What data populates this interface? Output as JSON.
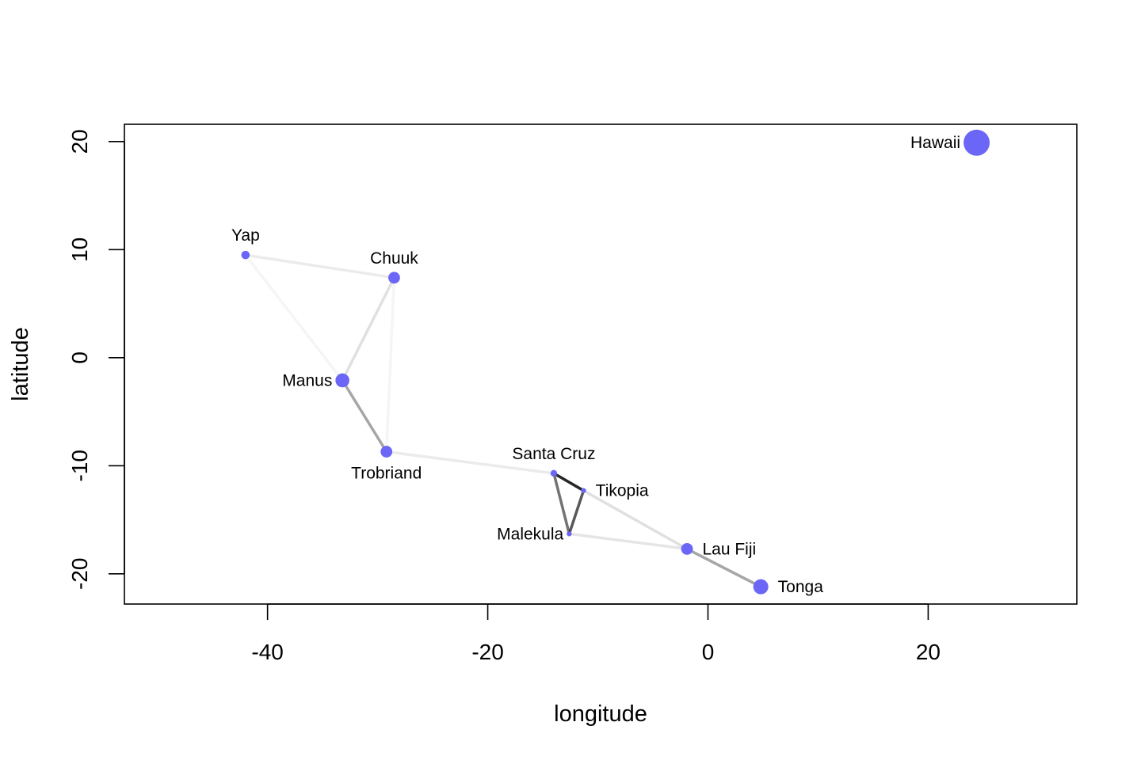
{
  "chart_data": {
    "type": "scatter",
    "title": "",
    "xlabel": "longitude",
    "ylabel": "latitude",
    "xlim": [
      -53,
      33.5
    ],
    "ylim": [
      -22.8,
      21.6
    ],
    "xticks": [
      -40,
      -20,
      0,
      20
    ],
    "yticks": [
      -20,
      -10,
      0,
      10,
      20
    ],
    "grid": false,
    "point_color": "#6b66f5",
    "edge_color": "#000000",
    "points": [
      {
        "name": "Yap",
        "x": -42.0,
        "y": 9.5,
        "size": 0.2,
        "label_pos": "above"
      },
      {
        "name": "Chuuk",
        "x": -28.5,
        "y": 7.4,
        "size": 0.35,
        "label_pos": "above"
      },
      {
        "name": "Manus",
        "x": -33.2,
        "y": -2.1,
        "size": 0.45,
        "label_pos": "left"
      },
      {
        "name": "Trobriand",
        "x": -29.2,
        "y": -8.7,
        "size": 0.35,
        "label_pos": "below"
      },
      {
        "name": "Santa Cruz",
        "x": -14.0,
        "y": -10.7,
        "size": 0.12,
        "label_pos": "above"
      },
      {
        "name": "Tikopia",
        "x": -11.3,
        "y": -12.3,
        "size": 0.05,
        "label_pos": "right"
      },
      {
        "name": "Malekula",
        "x": -12.6,
        "y": -16.3,
        "size": 0.05,
        "label_pos": "left"
      },
      {
        "name": "Lau Fiji",
        "x": -1.9,
        "y": -17.7,
        "size": 0.35,
        "label_pos": "right"
      },
      {
        "name": "Tonga",
        "x": 4.8,
        "y": -21.2,
        "size": 0.5,
        "label_pos": "right"
      },
      {
        "name": "Hawaii",
        "x": 24.4,
        "y": 19.9,
        "size": 1.0,
        "label_pos": "left"
      }
    ],
    "edges": [
      {
        "from": "Yap",
        "to": "Chuuk",
        "strength": 0.08
      },
      {
        "from": "Yap",
        "to": "Manus",
        "strength": 0.04
      },
      {
        "from": "Chuuk",
        "to": "Manus",
        "strength": 0.12
      },
      {
        "from": "Chuuk",
        "to": "Trobriand",
        "strength": 0.04
      },
      {
        "from": "Manus",
        "to": "Trobriand",
        "strength": 0.35
      },
      {
        "from": "Trobriand",
        "to": "Santa Cruz",
        "strength": 0.08
      },
      {
        "from": "Santa Cruz",
        "to": "Tikopia",
        "strength": 0.85
      },
      {
        "from": "Santa Cruz",
        "to": "Malekula",
        "strength": 0.55
      },
      {
        "from": "Tikopia",
        "to": "Malekula",
        "strength": 0.65
      },
      {
        "from": "Tikopia",
        "to": "Lau Fiji",
        "strength": 0.12
      },
      {
        "from": "Malekula",
        "to": "Lau Fiji",
        "strength": 0.1
      },
      {
        "from": "Lau Fiji",
        "to": "Tonga",
        "strength": 0.35
      }
    ]
  }
}
